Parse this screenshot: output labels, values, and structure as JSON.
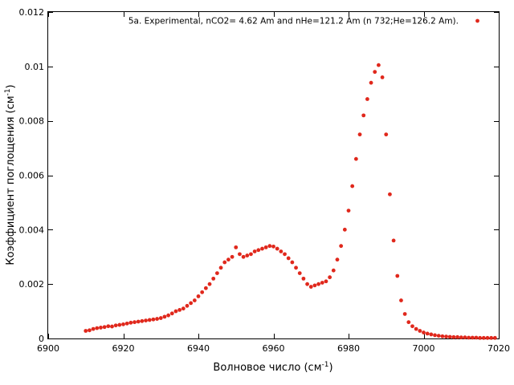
{
  "chart_data": {
    "type": "scatter",
    "xlabel": "Волновое число (см",
    "xlabel_sup": "-1",
    "xlabel_tail": ")",
    "ylabel": "Коэффициент поглощения (см",
    "ylabel_sup": "-1",
    "ylabel_tail": ")",
    "xlim": [
      6900,
      7020
    ],
    "ylim": [
      0,
      0.012
    ],
    "xticks": [
      6900,
      6920,
      6940,
      6960,
      6980,
      7000,
      7020
    ],
    "yticks": [
      0,
      0.002,
      0.004,
      0.006,
      0.008,
      0.01,
      0.012
    ],
    "ytick_labels": [
      "0",
      "0.002",
      "0.004",
      "0.006",
      "0.008",
      "0.01",
      "0.012"
    ],
    "grid": false,
    "legend_position": "top-right",
    "series": [
      {
        "name": "5a. Experimental, nCO2= 4.62 Am and nHe=121.2 Am (n  732;He=126.2 Am).",
        "color": "#e0281c",
        "marker": "circle",
        "x": [
          6910,
          6911,
          6912,
          6913,
          6914,
          6915,
          6916,
          6917,
          6918,
          6919,
          6920,
          6921,
          6922,
          6923,
          6924,
          6925,
          6926,
          6927,
          6928,
          6929,
          6930,
          6931,
          6932,
          6933,
          6934,
          6935,
          6936,
          6937,
          6938,
          6939,
          6940,
          6941,
          6942,
          6943,
          6944,
          6945,
          6946,
          6947,
          6948,
          6949,
          6950,
          6951,
          6952,
          6953,
          6954,
          6955,
          6956,
          6957,
          6958,
          6959,
          6960,
          6961,
          6962,
          6963,
          6964,
          6965,
          6966,
          6967,
          6968,
          6969,
          6970,
          6971,
          6972,
          6973,
          6974,
          6975,
          6976,
          6977,
          6978,
          6979,
          6980,
          6981,
          6982,
          6983,
          6984,
          6985,
          6986,
          6987,
          6988,
          6989,
          6990,
          6991,
          6992,
          6993,
          6994,
          6995,
          6996,
          6997,
          6998,
          6999,
          7000,
          7001,
          7002,
          7003,
          7004,
          7005,
          7006,
          7007,
          7008,
          7009,
          7010,
          7011,
          7012,
          7013,
          7014,
          7015,
          7016,
          7017,
          7018,
          7019
        ],
        "y": [
          0.00028,
          0.0003,
          0.00035,
          0.00038,
          0.0004,
          0.00042,
          0.00045,
          0.00044,
          0.00048,
          0.0005,
          0.00052,
          0.00055,
          0.00058,
          0.0006,
          0.00062,
          0.00064,
          0.00066,
          0.00068,
          0.0007,
          0.00072,
          0.00075,
          0.0008,
          0.00085,
          0.00092,
          0.001,
          0.00105,
          0.0011,
          0.0012,
          0.0013,
          0.0014,
          0.00155,
          0.0017,
          0.00185,
          0.002,
          0.0022,
          0.0024,
          0.0026,
          0.0028,
          0.0029,
          0.003,
          0.00335,
          0.0031,
          0.003,
          0.00305,
          0.0031,
          0.0032,
          0.00325,
          0.0033,
          0.00335,
          0.0034,
          0.00338,
          0.0033,
          0.0032,
          0.0031,
          0.00295,
          0.0028,
          0.0026,
          0.0024,
          0.0022,
          0.002,
          0.0019,
          0.00195,
          0.002,
          0.00205,
          0.0021,
          0.00225,
          0.0025,
          0.0029,
          0.0034,
          0.004,
          0.0047,
          0.0056,
          0.0066,
          0.0075,
          0.0082,
          0.0088,
          0.0094,
          0.0098,
          0.01005,
          0.0096,
          0.0075,
          0.0053,
          0.0036,
          0.0023,
          0.0014,
          0.0009,
          0.0006,
          0.00045,
          0.00035,
          0.00028,
          0.00022,
          0.00018,
          0.00015,
          0.00012,
          0.0001,
          8e-05,
          7e-05,
          6e-05,
          5e-05,
          5e-05,
          4e-05,
          4e-05,
          3e-05,
          3e-05,
          3e-05,
          2e-05,
          2e-05,
          2e-05,
          2e-05,
          2e-05
        ]
      }
    ]
  }
}
